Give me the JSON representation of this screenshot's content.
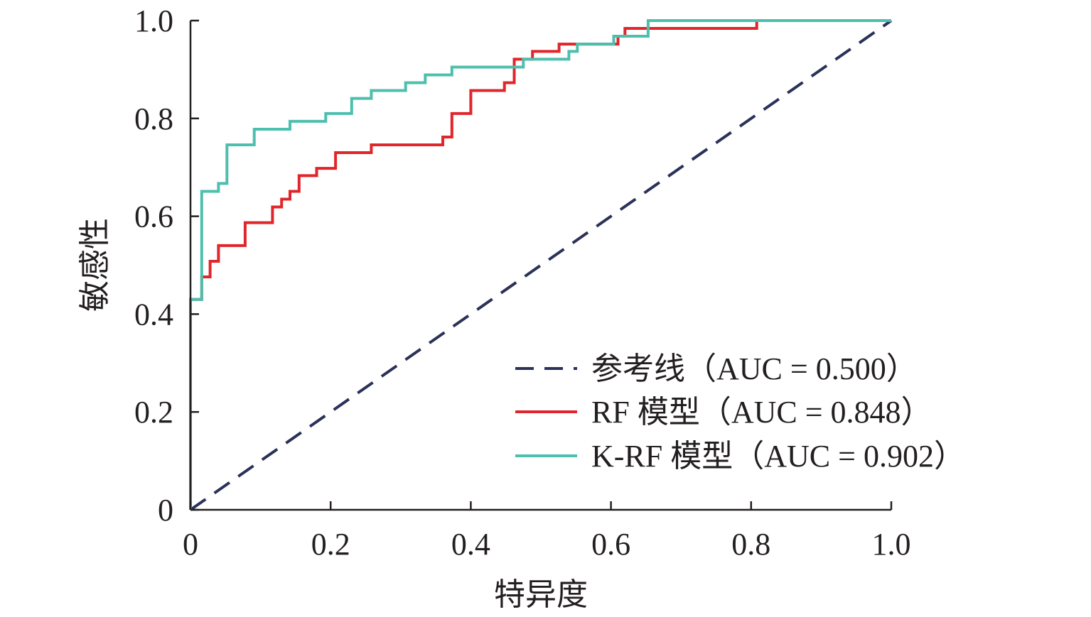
{
  "chart_data": {
    "type": "line",
    "title": "",
    "xlabel": "特异度",
    "ylabel": "敏感性",
    "xlim": [
      0,
      1
    ],
    "ylim": [
      0,
      1
    ],
    "grid": false,
    "legend_position": "bottom-right",
    "x_ticks": [
      "0",
      "0.2",
      "0.4",
      "0.6",
      "0.8",
      "1.0"
    ],
    "y_ticks": [
      "0",
      "0.2",
      "0.4",
      "0.6",
      "0.8",
      "1.0"
    ],
    "series": [
      {
        "name": "参考线（AUC = 0.500）",
        "style": "dashed",
        "color": "#2b3158",
        "points": [
          [
            0,
            0
          ],
          [
            1,
            1
          ]
        ]
      },
      {
        "name": "RF 模型（AUC = 0.848）",
        "style": "step",
        "color": "#e0262b",
        "points": [
          [
            0,
            0
          ],
          [
            0,
            0.43
          ],
          [
            0.016,
            0.43
          ],
          [
            0.016,
            0.476
          ],
          [
            0.028,
            0.476
          ],
          [
            0.028,
            0.508
          ],
          [
            0.04,
            0.508
          ],
          [
            0.04,
            0.54
          ],
          [
            0.078,
            0.54
          ],
          [
            0.078,
            0.587
          ],
          [
            0.117,
            0.587
          ],
          [
            0.117,
            0.619
          ],
          [
            0.13,
            0.619
          ],
          [
            0.13,
            0.635
          ],
          [
            0.142,
            0.635
          ],
          [
            0.142,
            0.651
          ],
          [
            0.155,
            0.651
          ],
          [
            0.155,
            0.683
          ],
          [
            0.18,
            0.683
          ],
          [
            0.18,
            0.698
          ],
          [
            0.207,
            0.698
          ],
          [
            0.207,
            0.73
          ],
          [
            0.258,
            0.73
          ],
          [
            0.258,
            0.746
          ],
          [
            0.36,
            0.746
          ],
          [
            0.36,
            0.762
          ],
          [
            0.373,
            0.762
          ],
          [
            0.373,
            0.81
          ],
          [
            0.4,
            0.81
          ],
          [
            0.4,
            0.857
          ],
          [
            0.448,
            0.857
          ],
          [
            0.448,
            0.873
          ],
          [
            0.462,
            0.873
          ],
          [
            0.462,
            0.921
          ],
          [
            0.488,
            0.921
          ],
          [
            0.488,
            0.937
          ],
          [
            0.526,
            0.937
          ],
          [
            0.526,
            0.952
          ],
          [
            0.61,
            0.952
          ],
          [
            0.61,
            0.968
          ],
          [
            0.62,
            0.968
          ],
          [
            0.62,
            0.984
          ],
          [
            0.808,
            0.984
          ],
          [
            0.808,
            1.0
          ],
          [
            1,
            1
          ]
        ]
      },
      {
        "name": "K-RF 模型（AUC = 0.902）",
        "style": "step",
        "color": "#4dbfae",
        "points": [
          [
            0,
            0
          ],
          [
            0,
            0.43
          ],
          [
            0.016,
            0.43
          ],
          [
            0.016,
            0.651
          ],
          [
            0.04,
            0.651
          ],
          [
            0.04,
            0.667
          ],
          [
            0.052,
            0.667
          ],
          [
            0.052,
            0.746
          ],
          [
            0.091,
            0.746
          ],
          [
            0.091,
            0.778
          ],
          [
            0.142,
            0.778
          ],
          [
            0.142,
            0.794
          ],
          [
            0.193,
            0.794
          ],
          [
            0.193,
            0.81
          ],
          [
            0.23,
            0.81
          ],
          [
            0.23,
            0.841
          ],
          [
            0.258,
            0.841
          ],
          [
            0.258,
            0.857
          ],
          [
            0.307,
            0.857
          ],
          [
            0.307,
            0.873
          ],
          [
            0.335,
            0.873
          ],
          [
            0.335,
            0.889
          ],
          [
            0.373,
            0.889
          ],
          [
            0.373,
            0.905
          ],
          [
            0.475,
            0.905
          ],
          [
            0.475,
            0.921
          ],
          [
            0.54,
            0.921
          ],
          [
            0.54,
            0.937
          ],
          [
            0.552,
            0.937
          ],
          [
            0.552,
            0.952
          ],
          [
            0.604,
            0.952
          ],
          [
            0.604,
            0.968
          ],
          [
            0.653,
            0.968
          ],
          [
            0.653,
            1.0
          ],
          [
            1,
            1
          ]
        ]
      }
    ]
  }
}
